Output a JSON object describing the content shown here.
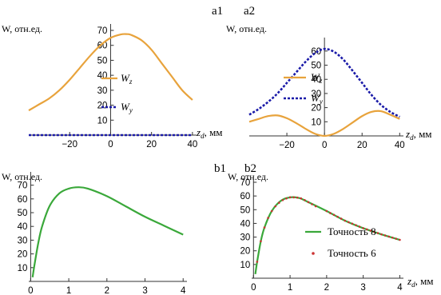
{
  "chart_data": [
    {
      "panel": "a1",
      "type": "line",
      "ylabel": "W, отн.ед.",
      "xlabel_main": "z",
      "xlabel_sub": "d",
      "xlabel_unit": ", мм",
      "xlim": [
        -40,
        42
      ],
      "ylim": [
        0,
        70
      ],
      "xticks": [
        -20,
        0,
        20,
        40
      ],
      "yticks": [
        10,
        20,
        30,
        40,
        50,
        60,
        70
      ],
      "legend_position": "center-right",
      "series": [
        {
          "name_main": "W",
          "name_sub": "z",
          "color": "#e8a33c",
          "style": "solid",
          "x": [
            -40,
            -35,
            -30,
            -25,
            -20,
            -15,
            -10,
            -5,
            0,
            5,
            8,
            10,
            15,
            20,
            25,
            30,
            35,
            40
          ],
          "y": [
            16.5,
            20.5,
            24.5,
            30,
            37,
            45,
            53,
            60,
            65,
            67.3,
            67.5,
            67,
            63.5,
            57,
            48,
            39,
            30,
            23.5
          ]
        },
        {
          "name_main": "W",
          "name_sub": "y",
          "color": "#1a1aa8",
          "style": "dotted",
          "x": [
            -40,
            40
          ],
          "y": [
            0,
            0
          ]
        }
      ]
    },
    {
      "panel": "a2",
      "type": "line",
      "ylabel": "W, отн.ед.",
      "xlabel_main": "z",
      "xlabel_sub": "d",
      "xlabel_unit": ", мм",
      "xlim": [
        -40,
        42
      ],
      "ylim": [
        0,
        65
      ],
      "xticks": [
        -20,
        0,
        20,
        40
      ],
      "yticks": [
        10,
        20,
        30,
        40,
        50,
        60
      ],
      "legend_position": "center-right",
      "series": [
        {
          "name_main": "W",
          "name_sub": "z",
          "color": "#e8a33c",
          "style": "solid",
          "x": [
            -40,
            -35,
            -30,
            -25,
            -20,
            -15,
            -10,
            -5,
            0,
            5,
            10,
            15,
            20,
            25,
            30,
            35,
            40
          ],
          "y": [
            10,
            12,
            14,
            14.5,
            12.5,
            9,
            5,
            1.5,
            0,
            1.5,
            5,
            9.5,
            14,
            17,
            17.5,
            15,
            12
          ]
        },
        {
          "name_main": "W",
          "name_sub": "y",
          "color": "#1a1aa8",
          "style": "dotted",
          "x": [
            -40,
            -35,
            -30,
            -25,
            -20,
            -15,
            -10,
            -5,
            0,
            5,
            10,
            15,
            20,
            25,
            30,
            35,
            40
          ],
          "y": [
            15,
            19,
            24,
            30,
            37.5,
            45,
            52.5,
            58.5,
            61.5,
            59.5,
            54,
            46,
            37.5,
            29,
            22,
            17,
            13.5
          ]
        }
      ]
    },
    {
      "panel": "b1",
      "type": "line",
      "ylabel": "W, отн.ед.",
      "xlabel_main": "",
      "xlabel_sub": "",
      "xlabel_unit": "",
      "xlim": [
        -0.05,
        4.1
      ],
      "ylim": [
        0,
        75
      ],
      "xticks": [
        0,
        1,
        2,
        3,
        4
      ],
      "yticks": [
        10,
        20,
        30,
        40,
        50,
        60,
        70
      ],
      "series": [
        {
          "name_main": "",
          "name_sub": "",
          "color": "#3aa83a",
          "style": "solid",
          "x": [
            0.05,
            0.1,
            0.2,
            0.3,
            0.5,
            0.75,
            1.0,
            1.25,
            1.5,
            2.0,
            2.5,
            3.0,
            3.5,
            4.0
          ],
          "y": [
            3,
            12,
            28,
            40,
            55,
            64,
            67.5,
            68.5,
            67.5,
            62,
            54.5,
            47,
            40.5,
            34
          ]
        }
      ]
    },
    {
      "panel": "b2",
      "type": "line",
      "ylabel": "W, отн.ед.",
      "xlabel_main": "z",
      "xlabel_sub": "d",
      "xlabel_unit": ", мм",
      "xlim": [
        -0.05,
        4.1
      ],
      "ylim": [
        0,
        70
      ],
      "xticks": [
        0,
        1,
        2,
        3,
        4
      ],
      "yticks": [
        10,
        20,
        30,
        40,
        50,
        60,
        70
      ],
      "legend_position": "center-right",
      "series": [
        {
          "name": "Точность 8",
          "color": "#3aa83a",
          "style": "solid",
          "x": [
            0.05,
            0.1,
            0.2,
            0.3,
            0.5,
            0.75,
            1.0,
            1.25,
            1.5,
            2.0,
            2.5,
            3.0,
            3.5,
            4.0
          ],
          "y": [
            3,
            12,
            27,
            37,
            49,
            56.5,
            59,
            58.5,
            55.5,
            49,
            42,
            36.5,
            32,
            28
          ]
        },
        {
          "name": "Точность 6",
          "color": "#cc3333",
          "style": "points",
          "x": [
            0.1,
            0.2,
            0.3,
            0.4,
            0.5,
            0.6,
            0.7,
            0.8,
            0.9,
            1.0,
            1.1,
            1.2,
            1.3,
            1.4,
            1.5,
            1.6,
            1.7,
            2.0,
            2.1,
            2.2,
            2.3,
            2.4,
            2.5,
            2.6,
            2.7,
            2.8,
            2.9,
            3.0,
            3.1,
            3.2,
            3.3,
            3.4,
            3.5,
            3.6,
            3.7,
            3.8,
            3.9,
            4.0
          ],
          "y": [
            12,
            27,
            37,
            44,
            49,
            52.5,
            55,
            57,
            58.2,
            59,
            59,
            58.8,
            58.2,
            57,
            55.5,
            54,
            52.5,
            49,
            47.5,
            46.2,
            44.8,
            43.4,
            42,
            40.9,
            39.8,
            38.7,
            37.6,
            36.5,
            35.6,
            34.7,
            33.8,
            32.9,
            32,
            31.2,
            30.4,
            29.6,
            28.8,
            28
          ]
        }
      ]
    }
  ]
}
